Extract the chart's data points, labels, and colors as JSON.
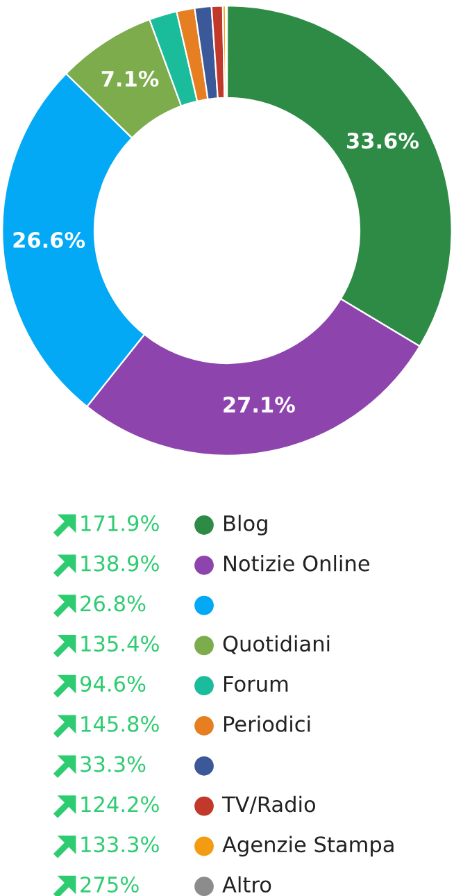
{
  "chart_data": {
    "type": "donut",
    "categories": [
      "Blog",
      "Notizie Online",
      null,
      "Quotidiani",
      "Forum",
      "Periodici",
      null,
      "TV/Radio",
      "Agenzie Stampa",
      "Altro"
    ],
    "values": [
      33.6,
      27.1,
      26.6,
      7.1,
      2.0,
      1.3,
      1.2,
      0.8,
      0.2,
      0.1
    ],
    "colors": [
      "#2e8b45",
      "#8e44ad",
      "#03a9f4",
      "#7cac4c",
      "#1abc9c",
      "#e67e22",
      "#3b5998",
      "#c0392b",
      "#f39c12",
      "#8c8c8c"
    ],
    "value_labels": [
      "33.6%",
      "27.1%",
      "26.6%",
      "7.1%",
      null,
      null,
      null,
      null,
      null,
      null
    ],
    "annotations": [
      "171.9%",
      "138.9%",
      "26.8%",
      "135.4%",
      "94.6%",
      "145.8%",
      "33.3%",
      "124.2%",
      "133.3%",
      "275%"
    ],
    "legend": "bottom"
  }
}
